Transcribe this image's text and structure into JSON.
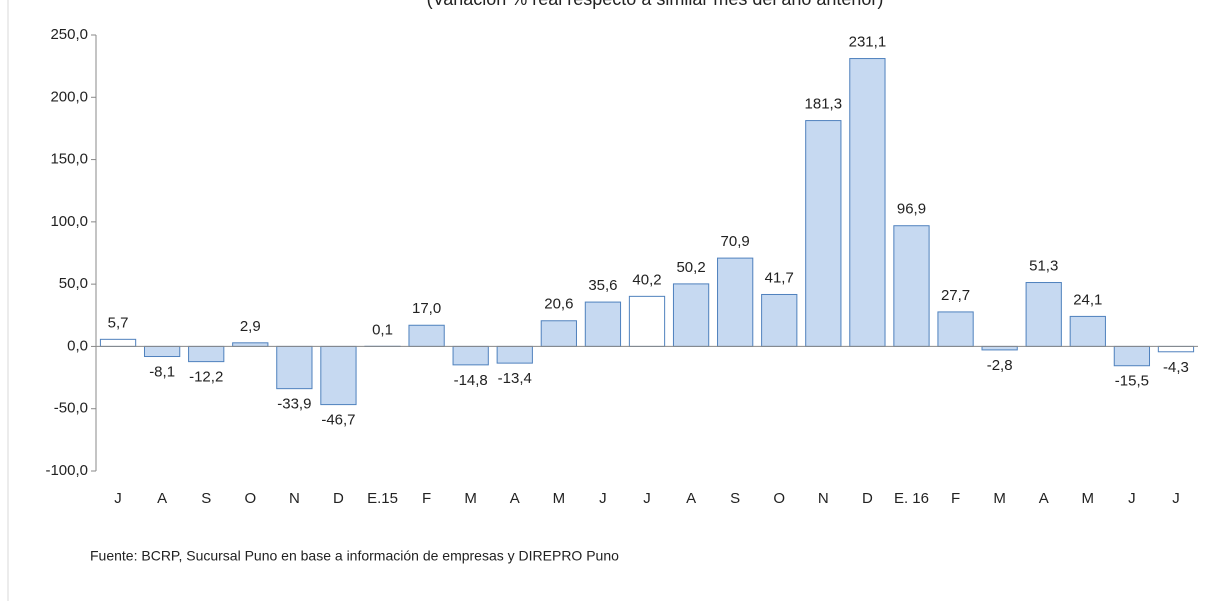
{
  "chart_data": {
    "type": "bar",
    "subtitle": "(Variación % real respecto a similar mes del año anterior)",
    "note": "Fuente: BCRP, Sucursal Puno en base a información de empresas y DIREPRO Puno",
    "categories": [
      "J",
      "A",
      "S",
      "O",
      "N",
      "D",
      "E.15",
      "F",
      "M",
      "A",
      "M",
      "J",
      "J",
      "A",
      "S",
      "O",
      "N",
      "D",
      "E. 16",
      "F",
      "M",
      "A",
      "M",
      "J",
      "J"
    ],
    "values": [
      5.7,
      -8.1,
      -12.2,
      2.9,
      -33.9,
      -46.7,
      0.1,
      17.0,
      -14.8,
      -13.4,
      20.6,
      35.6,
      40.2,
      50.2,
      70.9,
      41.7,
      181.3,
      231.1,
      96.9,
      27.7,
      -2.8,
      51.3,
      24.1,
      -15.5,
      -4.3
    ],
    "value_labels": [
      "5,7",
      "-8,1",
      "-12,2",
      "2,9",
      "-33,9",
      "-46,7",
      "0,1",
      "17,0",
      "-14,8",
      "-13,4",
      "20,6",
      "35,6",
      "40,2",
      "50,2",
      "70,9",
      "41,7",
      "181,3",
      "231,1",
      "96,9",
      "27,7",
      "-2,8",
      "51,3",
      "24,1",
      "-15,5",
      "-4,3"
    ],
    "colors": [
      "#ffffff",
      "#c6d9f1",
      "#c6d9f1",
      "#c6d9f1",
      "#c6d9f1",
      "#c6d9f1",
      "#c6d9f1",
      "#c6d9f1",
      "#c6d9f1",
      "#c6d9f1",
      "#c6d9f1",
      "#c6d9f1",
      "#ffffff",
      "#c6d9f1",
      "#c6d9f1",
      "#c6d9f1",
      "#c6d9f1",
      "#c6d9f1",
      "#c6d9f1",
      "#c6d9f1",
      "#c6d9f1",
      "#c6d9f1",
      "#c6d9f1",
      "#c6d9f1",
      "#ffffff"
    ],
    "edge_color": "#4f81bd",
    "ylim": [
      -100,
      250
    ],
    "yticks": [
      {
        "value": -100,
        "label": "-100,0"
      },
      {
        "value": -50,
        "label": "-50,0"
      },
      {
        "value": 0,
        "label": "0,0"
      },
      {
        "value": 50,
        "label": "50,0"
      },
      {
        "value": 100,
        "label": "100,0"
      },
      {
        "value": 150,
        "label": "150,0"
      },
      {
        "value": 200,
        "label": "200,0"
      },
      {
        "value": 250,
        "label": "250,0"
      }
    ]
  }
}
